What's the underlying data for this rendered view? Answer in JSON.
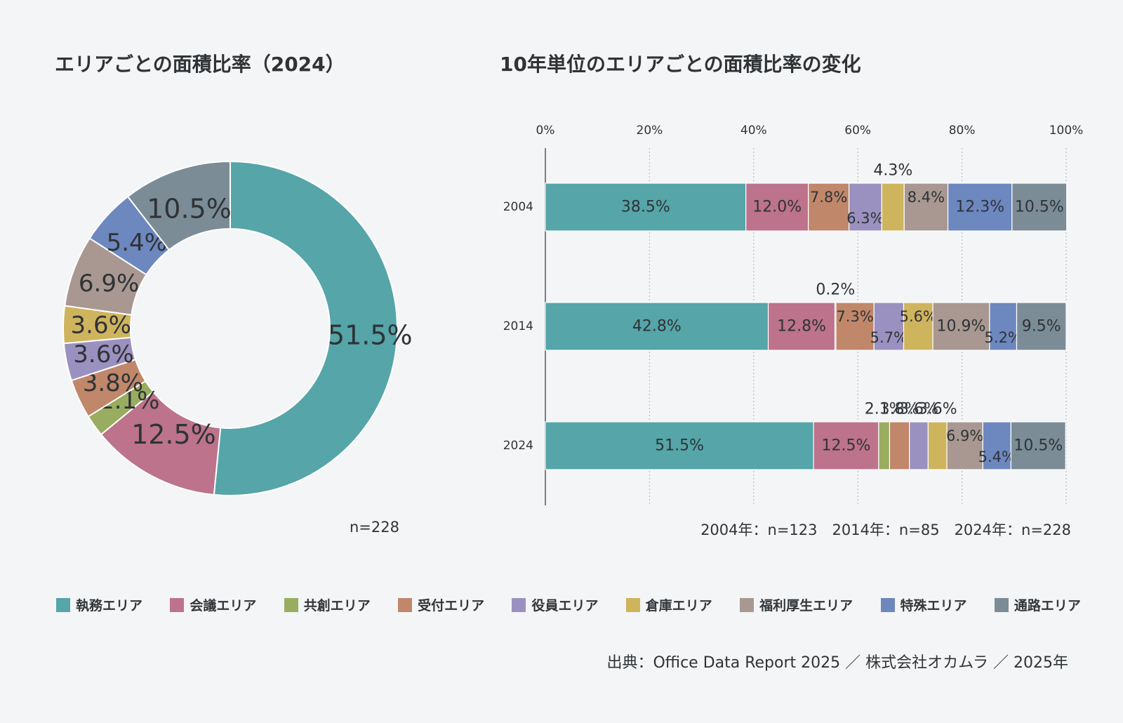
{
  "chart_data": [
    {
      "type": "pie",
      "title": "エリアごとの面積比率（2024）",
      "categories": [
        "執務エリア",
        "会議エリア",
        "共創エリア",
        "受付エリア",
        "役員エリア",
        "倉庫エリア",
        "福利厚生エリア",
        "特殊エリア",
        "通路エリア"
      ],
      "values": [
        51.5,
        12.5,
        2.1,
        3.8,
        3.6,
        3.6,
        6.9,
        5.4,
        10.5
      ],
      "labels": [
        "51.5%",
        "12.5%",
        "2.1%",
        "3.8%",
        "3.6%",
        "3.6%",
        "6.9%",
        "5.4%",
        "10.5%"
      ],
      "note": "n=228"
    },
    {
      "type": "bar",
      "orientation": "horizontal",
      "stacked": true,
      "title": "10年単位のエリアごとの面積比率の変化",
      "categories": [
        "2004",
        "2014",
        "2024"
      ],
      "xlim": [
        0,
        100
      ],
      "tick_labels": [
        "0%",
        "20%",
        "40%",
        "60%",
        "80%",
        "100%"
      ],
      "series": [
        {
          "name": "執務エリア",
          "values": [
            38.5,
            42.8,
            51.5
          ],
          "labels": [
            "38.5%",
            "42.8%",
            "51.5%"
          ]
        },
        {
          "name": "会議エリア",
          "values": [
            12.0,
            12.8,
            12.5
          ],
          "labels": [
            "12.0%",
            "12.8%",
            "12.5%"
          ]
        },
        {
          "name": "共創エリア",
          "values": [
            0,
            0.2,
            2.1
          ],
          "labels": [
            "",
            "0.2%",
            "2.1%"
          ]
        },
        {
          "name": "受付エリア",
          "values": [
            7.8,
            7.3,
            3.8
          ],
          "labels": [
            "7.8%",
            "7.3%",
            "3.8%"
          ]
        },
        {
          "name": "役員エリア",
          "values": [
            6.3,
            5.7,
            3.6
          ],
          "labels": [
            "6.3%",
            "5.7%",
            "3.6%"
          ]
        },
        {
          "name": "倉庫エリア",
          "values": [
            4.3,
            5.6,
            3.6
          ],
          "labels": [
            "4.3%",
            "5.6%",
            "3.6%"
          ]
        },
        {
          "name": "福利厚生エリア",
          "values": [
            8.4,
            10.9,
            6.9
          ],
          "labels": [
            "8.4%",
            "10.9%",
            "6.9%"
          ]
        },
        {
          "name": "特殊エリア",
          "values": [
            12.3,
            5.2,
            5.4
          ],
          "labels": [
            "12.3%",
            "5.2%",
            "5.4%"
          ]
        },
        {
          "name": "通路エリア",
          "values": [
            10.5,
            9.5,
            10.5
          ],
          "labels": [
            "10.5%",
            "9.5%",
            "10.5%"
          ]
        }
      ],
      "note": "2004年：n=123　2014年：n=85　2024年：n=228"
    }
  ],
  "colors": [
    "#55a5a9",
    "#bc738b",
    "#98ad5f",
    "#c0876a",
    "#9b91c0",
    "#cfb45e",
    "#a89891",
    "#6d87bf",
    "#7b8c97"
  ],
  "legend": [
    "執務エリア",
    "会議エリア",
    "共創エリア",
    "受付エリア",
    "役員エリア",
    "倉庫エリア",
    "福利厚生エリア",
    "特殊エリア",
    "通路エリア"
  ],
  "source": "出典：Office Data Report 2025 ／ 株式会社オカムラ ／ 2025年"
}
